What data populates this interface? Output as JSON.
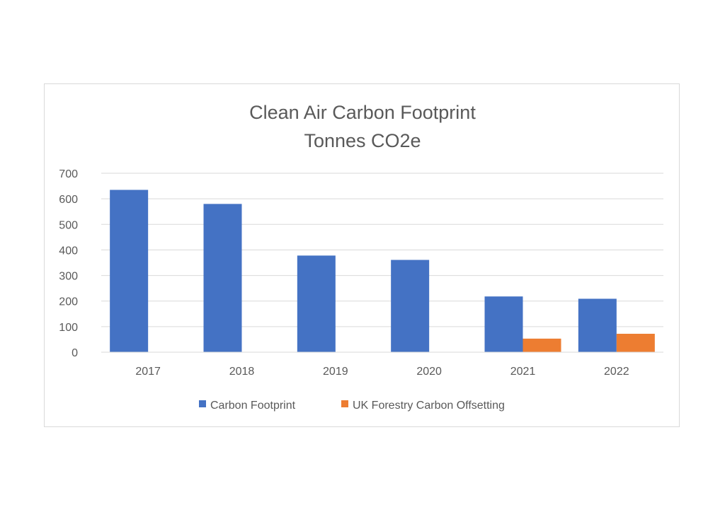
{
  "chart_data": {
    "type": "bar",
    "title": "Clean Air Carbon Footprint",
    "subtitle": "Tonnes CO2e",
    "xlabel": "",
    "ylabel": "",
    "categories": [
      "2017",
      "2018",
      "2019",
      "2020",
      "2021",
      "2022"
    ],
    "series": [
      {
        "name": "Carbon Footprint",
        "color": "#4472c4",
        "values": [
          635,
          580,
          378,
          361,
          218,
          209
        ]
      },
      {
        "name": "UK Forestry Carbon Offsetting",
        "color": "#ed7d31",
        "values": [
          0,
          0,
          0,
          0,
          53,
          72
        ]
      }
    ],
    "ylim": [
      0,
      700
    ],
    "yticks": [
      0,
      100,
      200,
      300,
      400,
      500,
      600,
      700
    ],
    "grid": true,
    "legend_position": "bottom"
  }
}
